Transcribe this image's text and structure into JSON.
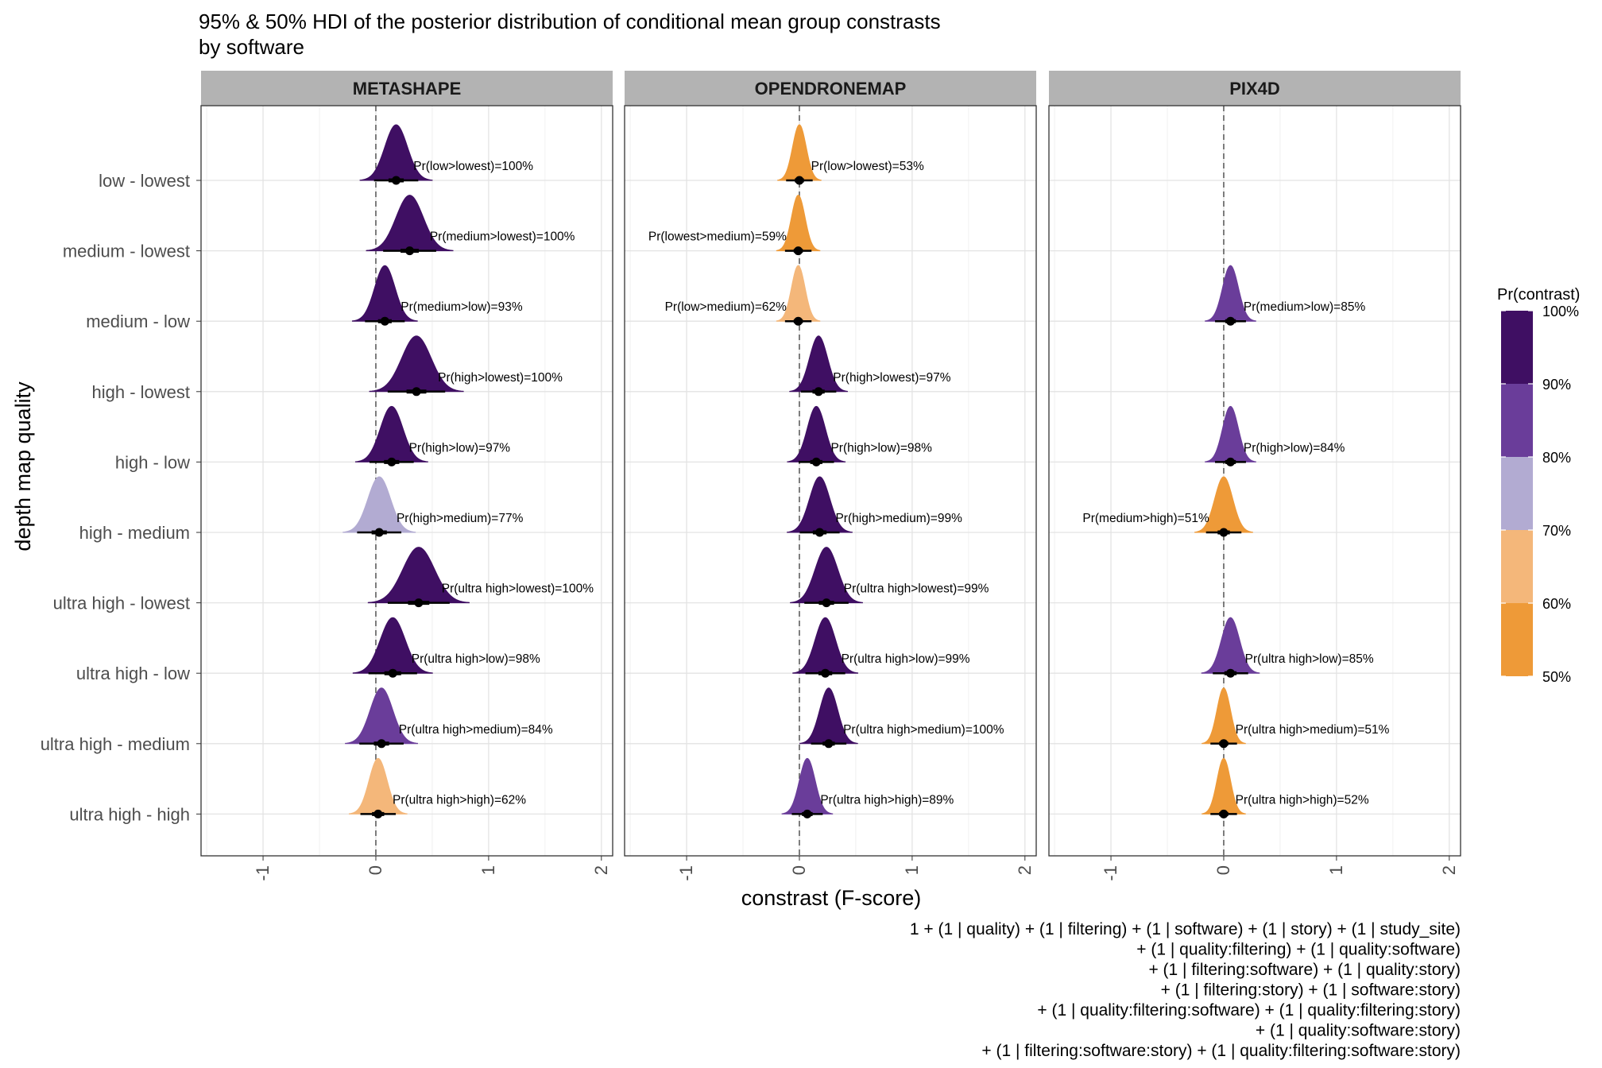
{
  "chart_data": {
    "type": "density-ridge",
    "title": "95% & 50% HDI of the posterior distribution of conditional mean group constrasts",
    "subtitle": "by software",
    "xlabel": "constrast (F-score)",
    "ylabel": "depth map quality",
    "x_ticks": [
      "-1",
      "0",
      "1",
      "2"
    ],
    "x_tick_values": [
      -1,
      0,
      1,
      2
    ],
    "xlim": [
      -1.55,
      2.1
    ],
    "categories": [
      "low - lowest",
      "medium - lowest",
      "medium - low",
      "high - lowest",
      "high - low",
      "high - medium",
      "ultra high - lowest",
      "ultra high - low",
      "ultra high - medium",
      "ultra high - high"
    ],
    "legend": {
      "title": "Pr(contrast)",
      "labels": [
        "100%",
        "90%",
        "80%",
        "70%",
        "60%",
        "50%"
      ],
      "bins": [
        {
          "min": 90,
          "max": 100,
          "color": "#3f0f63"
        },
        {
          "min": 80,
          "max": 90,
          "color": "#6a3d9a"
        },
        {
          "min": 70,
          "max": 80,
          "color": "#b2abd2"
        },
        {
          "min": 60,
          "max": 70,
          "color": "#f4b77a"
        },
        {
          "min": 50,
          "max": 60,
          "color": "#ee9a38"
        }
      ],
      "position": "right"
    },
    "caption": [
      "1 + (1 | quality) + (1 | filtering) + (1 | software) + (1 | story) + (1 | study_site)",
      "+ (1 | quality:filtering) + (1 | quality:software)",
      "+ (1 | filtering:software) + (1 | quality:story)",
      "+ (1 | filtering:story) + (1 | software:story)",
      "+ (1 | quality:filtering:software) + (1 | quality:filtering:story)",
      "+ (1 | quality:software:story)",
      "+ (1 | filtering:software:story) + (1 | quality:filtering:software:story)"
    ],
    "panels": [
      {
        "name": "METASHAPE",
        "rows": [
          {
            "cat": "low - lowest",
            "median": 0.18,
            "sd": 0.1,
            "label": "Pr(low>lowest)=100%",
            "pr": 100,
            "label_side": "right"
          },
          {
            "cat": "medium - lowest",
            "median": 0.3,
            "sd": 0.12,
            "label": "Pr(medium>lowest)=100%",
            "pr": 100,
            "label_side": "right"
          },
          {
            "cat": "medium - low",
            "median": 0.08,
            "sd": 0.09,
            "label": "Pr(medium>low)=93%",
            "pr": 93,
            "label_side": "right"
          },
          {
            "cat": "high - lowest",
            "median": 0.36,
            "sd": 0.13,
            "label": "Pr(high>lowest)=100%",
            "pr": 100,
            "label_side": "right"
          },
          {
            "cat": "high - low",
            "median": 0.14,
            "sd": 0.1,
            "label": "Pr(high>low)=97%",
            "pr": 97,
            "label_side": "right"
          },
          {
            "cat": "high - medium",
            "median": 0.03,
            "sd": 0.1,
            "label": "Pr(high>medium)=77%",
            "pr": 77,
            "label_side": "right"
          },
          {
            "cat": "ultra high - lowest",
            "median": 0.38,
            "sd": 0.14,
            "label": "Pr(ultra high>lowest)=100%",
            "pr": 100,
            "label_side": "right"
          },
          {
            "cat": "ultra high - low",
            "median": 0.15,
            "sd": 0.11,
            "label": "Pr(ultra high>low)=98%",
            "pr": 98,
            "label_side": "right"
          },
          {
            "cat": "ultra high - medium",
            "median": 0.05,
            "sd": 0.1,
            "label": "Pr(ultra high>medium)=84%",
            "pr": 84,
            "label_side": "right"
          },
          {
            "cat": "ultra high - high",
            "median": 0.02,
            "sd": 0.08,
            "label": "Pr(ultra high>high)=62%",
            "pr": 62,
            "label_side": "right"
          }
        ]
      },
      {
        "name": "OPENDRONEMAP",
        "rows": [
          {
            "cat": "low - lowest",
            "median": 0.0,
            "sd": 0.06,
            "label": "Pr(low>lowest)=53%",
            "pr": 53,
            "label_side": "right"
          },
          {
            "cat": "medium - lowest",
            "median": -0.01,
            "sd": 0.06,
            "label": "Pr(lowest>medium)=59%",
            "pr": 59,
            "label_side": "left"
          },
          {
            "cat": "medium - low",
            "median": -0.01,
            "sd": 0.06,
            "label": "Pr(low>medium)=62%",
            "pr": 62,
            "label_side": "left"
          },
          {
            "cat": "high - lowest",
            "median": 0.17,
            "sd": 0.08,
            "label": "Pr(high>lowest)=97%",
            "pr": 97,
            "label_side": "right"
          },
          {
            "cat": "high - low",
            "median": 0.15,
            "sd": 0.08,
            "label": "Pr(high>low)=98%",
            "pr": 98,
            "label_side": "right"
          },
          {
            "cat": "high - medium",
            "median": 0.18,
            "sd": 0.09,
            "label": "Pr(high>medium)=99%",
            "pr": 99,
            "label_side": "right"
          },
          {
            "cat": "ultra high - lowest",
            "median": 0.24,
            "sd": 0.1,
            "label": "Pr(ultra high>lowest)=99%",
            "pr": 99,
            "label_side": "right"
          },
          {
            "cat": "ultra high - low",
            "median": 0.23,
            "sd": 0.09,
            "label": "Pr(ultra high>low)=99%",
            "pr": 99,
            "label_side": "right"
          },
          {
            "cat": "ultra high - medium",
            "median": 0.26,
            "sd": 0.08,
            "label": "Pr(ultra high>medium)=100%",
            "pr": 100,
            "label_side": "right"
          },
          {
            "cat": "ultra high - high",
            "median": 0.07,
            "sd": 0.07,
            "label": "Pr(ultra high>high)=89%",
            "pr": 89,
            "label_side": "right"
          }
        ]
      },
      {
        "name": "PIX4D",
        "rows": [
          {
            "cat": "medium - low",
            "median": 0.06,
            "sd": 0.07,
            "label": "Pr(medium>low)=85%",
            "pr": 85,
            "label_side": "right"
          },
          {
            "cat": "high - low",
            "median": 0.06,
            "sd": 0.07,
            "label": "Pr(high>low)=84%",
            "pr": 84,
            "label_side": "right"
          },
          {
            "cat": "high - medium",
            "median": 0.0,
            "sd": 0.08,
            "label": "Pr(medium>high)=51%",
            "pr": 51,
            "label_side": "left"
          },
          {
            "cat": "ultra high - low",
            "median": 0.06,
            "sd": 0.08,
            "label": "Pr(ultra high>low)=85%",
            "pr": 85,
            "label_side": "right"
          },
          {
            "cat": "ultra high - medium",
            "median": 0.0,
            "sd": 0.06,
            "label": "Pr(ultra high>medium)=51%",
            "pr": 51,
            "label_side": "right"
          },
          {
            "cat": "ultra high - high",
            "median": 0.0,
            "sd": 0.06,
            "label": "Pr(ultra high>high)=52%",
            "pr": 52,
            "label_side": "right"
          }
        ]
      }
    ]
  }
}
